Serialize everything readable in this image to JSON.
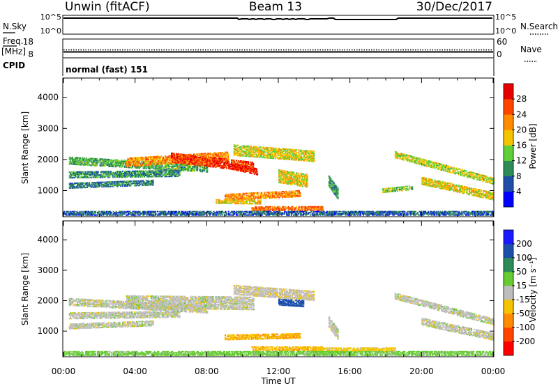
{
  "header": {
    "radar": "Unwin (fitACF)",
    "beam": "Beam 13",
    "date": "30/Dec/2017"
  },
  "strip_panels": {
    "nsky": {
      "label": "N.Sky",
      "ticks": [
        "10^5",
        "10^0"
      ],
      "right_label": "N.Search",
      "right_ticks": [
        "10^5",
        "10^0"
      ]
    },
    "freq": {
      "label_line1": "Freq.",
      "label_line2": "[MHz]",
      "ticks": [
        "18",
        "8"
      ],
      "right_label": "Nave",
      "right_ticks": [
        "60",
        "0"
      ],
      "freq_level_mhz": 11,
      "nave_level": 25
    },
    "cpid": {
      "label": "CPID",
      "text": "normal (fast) 151"
    }
  },
  "colorbars": {
    "power": {
      "title": "Power [dB]",
      "labels": [
        "4",
        "8",
        "12",
        "16",
        "20",
        "24",
        "28"
      ],
      "colors": [
        "#0000ff",
        "#1e4fa8",
        "#2e8b57",
        "#5fcf3a",
        "#f5c400",
        "#ff8c00",
        "#ff4500",
        "#e60000"
      ]
    },
    "velocity": {
      "title": "Velocity [m s⁻¹]",
      "labels": [
        "200",
        "100",
        "50",
        "15",
        "-15",
        "-50",
        "-100",
        "-200"
      ],
      "colors": [
        "#1a1aff",
        "#1a4faa",
        "#2e8b57",
        "#66cc33",
        "#bebebe",
        "#f5c400",
        "#ff8c00",
        "#ff4500",
        "#ff0000"
      ]
    }
  },
  "xaxis": {
    "title": "Time UT",
    "tick_labels": [
      "00:00",
      "04:00",
      "08:00",
      "12:00",
      "16:00",
      "20:00",
      "00:00"
    ]
  },
  "chart_data": [
    {
      "type": "heatmap",
      "title": "Power [dB]",
      "xlabel": "Time UT",
      "ylabel": "Slant Range [km]",
      "xlim_hours": [
        0,
        24
      ],
      "ylim_km": [
        180,
        4600
      ],
      "ytick_labels": [
        "1000",
        "2000",
        "3000",
        "4000"
      ],
      "ytick_values": [
        1000,
        2000,
        3000,
        4000
      ],
      "color_scale": [
        0,
        32
      ],
      "echo_bands": [
        {
          "t0": 0.3,
          "t1": 8.0,
          "r0": 1950,
          "r1": 1700,
          "w": 220,
          "v": 12
        },
        {
          "t0": 0.3,
          "t1": 6.5,
          "r0": 1500,
          "r1": 1550,
          "w": 200,
          "v": 10
        },
        {
          "t0": 0.3,
          "t1": 5.0,
          "r0": 1150,
          "r1": 1250,
          "w": 160,
          "v": 9
        },
        {
          "t0": 3.5,
          "t1": 9.2,
          "r0": 1900,
          "r1": 2100,
          "w": 260,
          "v": 22
        },
        {
          "t0": 6.0,
          "t1": 10.6,
          "r0": 2050,
          "r1": 1750,
          "w": 300,
          "v": 27
        },
        {
          "t0": 9.2,
          "t1": 10.8,
          "r0": 1800,
          "r1": 1600,
          "w": 200,
          "v": 29
        },
        {
          "t0": 9.5,
          "t1": 14.0,
          "r0": 2300,
          "r1": 2100,
          "w": 350,
          "v": 17
        },
        {
          "t0": 9.0,
          "t1": 13.2,
          "r0": 780,
          "r1": 900,
          "w": 200,
          "v": 22
        },
        {
          "t0": 10.5,
          "t1": 14.5,
          "r0": 420,
          "r1": 420,
          "w": 130,
          "v": 24
        },
        {
          "t0": 8.5,
          "t1": 11.0,
          "r0": 640,
          "r1": 620,
          "w": 120,
          "v": 18
        },
        {
          "t0": 12.0,
          "t1": 13.6,
          "r0": 1450,
          "r1": 1300,
          "w": 400,
          "v": 18
        },
        {
          "t0": 14.8,
          "t1": 15.3,
          "r0": 1300,
          "r1": 900,
          "w": 350,
          "v": 11
        },
        {
          "t0": 17.8,
          "t1": 19.5,
          "r0": 1000,
          "r1": 1100,
          "w": 140,
          "v": 15
        },
        {
          "t0": 18.5,
          "t1": 24.0,
          "r0": 2150,
          "r1": 1300,
          "w": 200,
          "v": 16
        },
        {
          "t0": 20.0,
          "t1": 24.0,
          "r0": 1300,
          "r1": 800,
          "w": 220,
          "v": 18
        },
        {
          "t0": 0.0,
          "t1": 24.0,
          "r0": 260,
          "r1": 260,
          "w": 120,
          "v": 7
        }
      ]
    },
    {
      "type": "heatmap",
      "title": "Velocity [m s⁻¹]",
      "xlabel": "Time UT",
      "ylabel": "Slant Range [km]",
      "xlim_hours": [
        0,
        24
      ],
      "ylim_km": [
        180,
        4600
      ],
      "ytick_labels": [
        "1000",
        "2000",
        "3000",
        "4000"
      ],
      "ytick_values": [
        1000,
        2000,
        3000,
        4000
      ],
      "color_scale": [
        -250,
        250
      ],
      "echo_bands": [
        {
          "t0": 0.3,
          "t1": 8.0,
          "r0": 1950,
          "r1": 1700,
          "w": 220,
          "v": 0
        },
        {
          "t0": 0.3,
          "t1": 6.5,
          "r0": 1500,
          "r1": 1550,
          "w": 200,
          "v": 0
        },
        {
          "t0": 0.3,
          "t1": 5.0,
          "r0": 1150,
          "r1": 1250,
          "w": 160,
          "v": 0
        },
        {
          "t0": 3.5,
          "t1": 10.6,
          "r0": 1950,
          "r1": 1900,
          "w": 400,
          "v": 0
        },
        {
          "t0": 9.5,
          "t1": 14.0,
          "r0": 2350,
          "r1": 2150,
          "w": 300,
          "v": -5
        },
        {
          "t0": 12.0,
          "t1": 13.4,
          "r0": 1950,
          "r1": 1900,
          "w": 200,
          "v": 180
        },
        {
          "t0": 9.0,
          "t1": 13.2,
          "r0": 800,
          "r1": 850,
          "w": 180,
          "v": -45
        },
        {
          "t0": 10.5,
          "t1": 14.5,
          "r0": 420,
          "r1": 420,
          "w": 130,
          "v": -40
        },
        {
          "t0": 14.2,
          "t1": 18.5,
          "r0": 380,
          "r1": 380,
          "w": 110,
          "v": -30
        },
        {
          "t0": 14.8,
          "t1": 15.3,
          "r0": 1300,
          "r1": 900,
          "w": 350,
          "v": 0
        },
        {
          "t0": 18.5,
          "t1": 24.0,
          "r0": 2150,
          "r1": 1300,
          "w": 200,
          "v": 0
        },
        {
          "t0": 20.0,
          "t1": 24.0,
          "r0": 1300,
          "r1": 800,
          "w": 220,
          "v": 0
        },
        {
          "t0": 0.0,
          "t1": 24.0,
          "r0": 260,
          "r1": 260,
          "w": 120,
          "v": 30
        }
      ]
    }
  ]
}
